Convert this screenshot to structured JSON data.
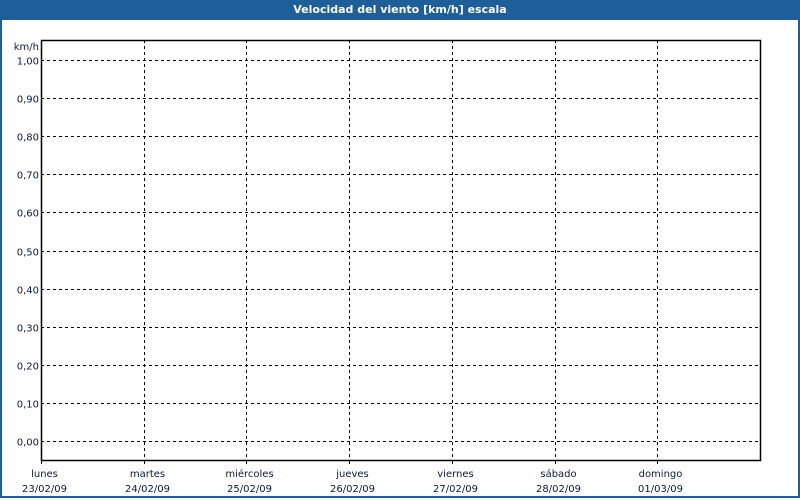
{
  "window": {
    "title": "Velocidad del viento [km/h] escala",
    "accent": "#1f5f99"
  },
  "chart_data": {
    "type": "line",
    "title": "Velocidad del viento [km/h] escala",
    "ylabel": "km/h",
    "ylim": [
      0,
      1
    ],
    "yticks": [
      "0,00",
      "0,10",
      "0,20",
      "0,30",
      "0,40",
      "0,50",
      "0,60",
      "0,70",
      "0,80",
      "0,90",
      "1,00"
    ],
    "categories": [
      {
        "day": "lunes",
        "date": "23/02/09"
      },
      {
        "day": "martes",
        "date": "24/02/09"
      },
      {
        "day": "miércoles",
        "date": "25/02/09"
      },
      {
        "day": "jueves",
        "date": "26/02/09"
      },
      {
        "day": "viernes",
        "date": "27/02/09"
      },
      {
        "day": "sábado",
        "date": "28/02/09"
      },
      {
        "day": "domingo",
        "date": "01/03/09"
      }
    ],
    "series": [],
    "grid": true,
    "grid_style": "dashed"
  }
}
